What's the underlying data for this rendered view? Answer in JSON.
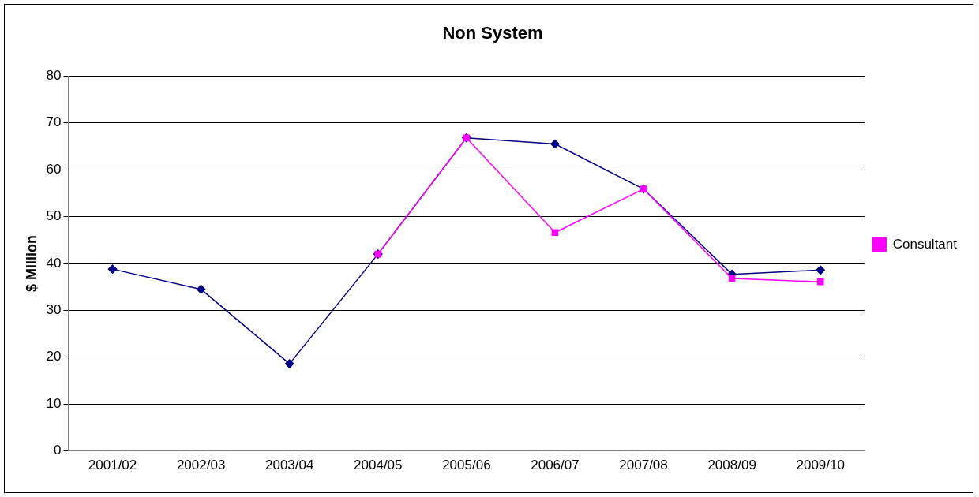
{
  "chart_data": {
    "type": "line",
    "title": "Non System",
    "ylabel": "$ Million",
    "categories": [
      "2001/02",
      "2002/03",
      "2003/04",
      "2004/05",
      "2005/06",
      "2006/07",
      "2007/08",
      "2008/09",
      "2009/10"
    ],
    "series": [
      {
        "color": "#000080",
        "marker": "diamond",
        "values": [
          38.8,
          34.5,
          18.6,
          42,
          66.8,
          65.5,
          55.9,
          37.7,
          38.6
        ]
      },
      {
        "name": "Consultant",
        "color": "#ff00ff",
        "marker": "square",
        "values": [
          null,
          null,
          null,
          42,
          66.8,
          46.6,
          55.9,
          36.8,
          36.1
        ]
      }
    ],
    "ylim": [
      0,
      80
    ],
    "yticks": [
      0,
      10,
      20,
      30,
      40,
      50,
      60,
      70,
      80
    ],
    "grid": "y",
    "legend": "right",
    "line_style": "solid"
  }
}
